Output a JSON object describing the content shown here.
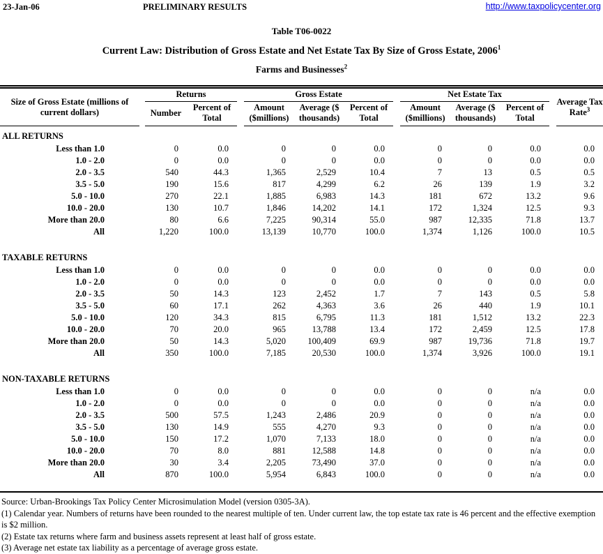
{
  "header": {
    "date": "23-Jan-06",
    "status": "PRELIMINARY RESULTS",
    "url": "http://www.taxpolicycenter.org"
  },
  "title": {
    "table_number": "Table T06-0022",
    "main": "Current Law: Distribution of Gross Estate and Net Estate Tax By Size of Gross Estate, 2006",
    "main_sup": "1",
    "subtitle": "Farms and Businesses",
    "subtitle_sup": "2"
  },
  "table": {
    "row_header": "Size of Gross Estate (millions of current dollars)",
    "groups": [
      {
        "label": "Returns",
        "columns": [
          "Number",
          "Percent of Total"
        ]
      },
      {
        "label": "Gross Estate",
        "columns": [
          "Amount ($millions)",
          "Average ($ thousands)",
          "Percent of Total"
        ]
      },
      {
        "label": "Net Estate Tax",
        "columns": [
          "Amount ($millions)",
          "Average ($ thousands)",
          "Percent of Total"
        ]
      }
    ],
    "last_column": {
      "label": "Average Tax Rate",
      "sup": "3"
    },
    "sections": [
      {
        "name": "ALL RETURNS",
        "rows": [
          {
            "label": "Less than 1.0",
            "values": [
              "0",
              "0.0",
              "0",
              "0",
              "0.0",
              "0",
              "0",
              "0.0",
              "0.0"
            ]
          },
          {
            "label": "1.0 - 2.0",
            "values": [
              "0",
              "0.0",
              "0",
              "0",
              "0.0",
              "0",
              "0",
              "0.0",
              "0.0"
            ]
          },
          {
            "label": "2.0 - 3.5",
            "values": [
              "540",
              "44.3",
              "1,365",
              "2,529",
              "10.4",
              "7",
              "13",
              "0.5",
              "0.5"
            ]
          },
          {
            "label": "3.5 - 5.0",
            "values": [
              "190",
              "15.6",
              "817",
              "4,299",
              "6.2",
              "26",
              "139",
              "1.9",
              "3.2"
            ]
          },
          {
            "label": "5.0 - 10.0",
            "values": [
              "270",
              "22.1",
              "1,885",
              "6,983",
              "14.3",
              "181",
              "672",
              "13.2",
              "9.6"
            ]
          },
          {
            "label": "10.0 - 20.0",
            "values": [
              "130",
              "10.7",
              "1,846",
              "14,202",
              "14.1",
              "172",
              "1,324",
              "12.5",
              "9.3"
            ]
          },
          {
            "label": "More than 20.0",
            "values": [
              "80",
              "6.6",
              "7,225",
              "90,314",
              "55.0",
              "987",
              "12,335",
              "71.8",
              "13.7"
            ]
          },
          {
            "label": "All",
            "values": [
              "1,220",
              "100.0",
              "13,139",
              "10,770",
              "100.0",
              "1,374",
              "1,126",
              "100.0",
              "10.5"
            ]
          }
        ]
      },
      {
        "name": "TAXABLE RETURNS",
        "rows": [
          {
            "label": "Less than 1.0",
            "values": [
              "0",
              "0.0",
              "0",
              "0",
              "0.0",
              "0",
              "0",
              "0.0",
              "0.0"
            ]
          },
          {
            "label": "1.0 - 2.0",
            "values": [
              "0",
              "0.0",
              "0",
              "0",
              "0.0",
              "0",
              "0",
              "0.0",
              "0.0"
            ]
          },
          {
            "label": "2.0 - 3.5",
            "values": [
              "50",
              "14.3",
              "123",
              "2,452",
              "1.7",
              "7",
              "143",
              "0.5",
              "5.8"
            ]
          },
          {
            "label": "3.5 - 5.0",
            "values": [
              "60",
              "17.1",
              "262",
              "4,363",
              "3.6",
              "26",
              "440",
              "1.9",
              "10.1"
            ]
          },
          {
            "label": "5.0 - 10.0",
            "values": [
              "120",
              "34.3",
              "815",
              "6,795",
              "11.3",
              "181",
              "1,512",
              "13.2",
              "22.3"
            ]
          },
          {
            "label": "10.0 - 20.0",
            "values": [
              "70",
              "20.0",
              "965",
              "13,788",
              "13.4",
              "172",
              "2,459",
              "12.5",
              "17.8"
            ]
          },
          {
            "label": "More than 20.0",
            "values": [
              "50",
              "14.3",
              "5,020",
              "100,409",
              "69.9",
              "987",
              "19,736",
              "71.8",
              "19.7"
            ]
          },
          {
            "label": "All",
            "values": [
              "350",
              "100.0",
              "7,185",
              "20,530",
              "100.0",
              "1,374",
              "3,926",
              "100.0",
              "19.1"
            ]
          }
        ]
      },
      {
        "name": "NON-TAXABLE RETURNS",
        "rows": [
          {
            "label": "Less than 1.0",
            "values": [
              "0",
              "0.0",
              "0",
              "0",
              "0.0",
              "0",
              "0",
              "n/a",
              "0.0"
            ]
          },
          {
            "label": "1.0 - 2.0",
            "values": [
              "0",
              "0.0",
              "0",
              "0",
              "0.0",
              "0",
              "0",
              "n/a",
              "0.0"
            ]
          },
          {
            "label": "2.0 - 3.5",
            "values": [
              "500",
              "57.5",
              "1,243",
              "2,486",
              "20.9",
              "0",
              "0",
              "n/a",
              "0.0"
            ]
          },
          {
            "label": "3.5 - 5.0",
            "values": [
              "130",
              "14.9",
              "555",
              "4,270",
              "9.3",
              "0",
              "0",
              "n/a",
              "0.0"
            ]
          },
          {
            "label": "5.0 - 10.0",
            "values": [
              "150",
              "17.2",
              "1,070",
              "7,133",
              "18.0",
              "0",
              "0",
              "n/a",
              "0.0"
            ]
          },
          {
            "label": "10.0 - 20.0",
            "values": [
              "70",
              "8.0",
              "881",
              "12,588",
              "14.8",
              "0",
              "0",
              "n/a",
              "0.0"
            ]
          },
          {
            "label": "More than 20.0",
            "values": [
              "30",
              "3.4",
              "2,205",
              "73,490",
              "37.0",
              "0",
              "0",
              "n/a",
              "0.0"
            ]
          },
          {
            "label": "All",
            "values": [
              "870",
              "100.0",
              "5,954",
              "6,843",
              "100.0",
              "0",
              "0",
              "n/a",
              "0.0"
            ]
          }
        ]
      }
    ]
  },
  "footnotes": [
    "Source: Urban-Brookings Tax Policy Center Microsimulation Model (version 0305-3A).",
    "(1) Calendar year. Numbers of returns have been rounded to the nearest multiple of ten. Under current law, the top estate tax rate is 46 percent and the effective exemption is $2 million.",
    "(2) Estate tax returns where farm and business assets represent at least half of gross estate.",
    "(3) Average net estate tax liability as a percentage of average gross estate."
  ]
}
